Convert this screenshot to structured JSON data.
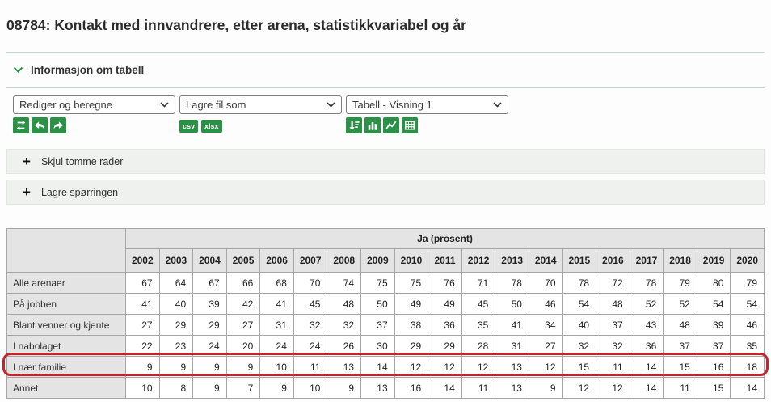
{
  "page": {
    "title": "08784: Kontakt med innvandrere, etter arena, statistikkvariabel og år"
  },
  "info": {
    "label": "Informasjon om tabell",
    "chevron_icon": "chevron-down-icon"
  },
  "toolbar": {
    "selects": [
      {
        "value": "Rediger og beregne"
      },
      {
        "value": "Lagre fil som"
      },
      {
        "value": "Tabell - Visning 1"
      }
    ],
    "edit_icons": [
      "pivot-icon",
      "undo-arrow-icon",
      "redo-arrow-icon"
    ],
    "file_buttons": [
      {
        "label": "csv"
      },
      {
        "label": "xlsx"
      }
    ],
    "view_icons": [
      "sort-icon",
      "bar-chart-icon",
      "line-chart-icon",
      "table-grid-icon"
    ]
  },
  "panels": [
    {
      "icon": "plus-icon",
      "label": "Skjul tomme rader"
    },
    {
      "icon": "plus-icon",
      "label": "Lagre spørringen"
    }
  ],
  "table": {
    "group_header": "Ja (prosent)",
    "years": [
      "2002",
      "2003",
      "2004",
      "2005",
      "2006",
      "2007",
      "2008",
      "2009",
      "2010",
      "2011",
      "2012",
      "2013",
      "2014",
      "2015",
      "2016",
      "2017",
      "2018",
      "2019",
      "2020"
    ],
    "rows": [
      {
        "label": "Alle arenaer",
        "values": [
          67,
          64,
          67,
          66,
          68,
          70,
          74,
          75,
          75,
          76,
          71,
          78,
          70,
          78,
          72,
          78,
          79,
          80,
          79
        ]
      },
      {
        "label": "På jobben",
        "values": [
          41,
          40,
          39,
          42,
          41,
          45,
          48,
          50,
          49,
          49,
          45,
          50,
          46,
          54,
          48,
          52,
          52,
          54,
          54
        ]
      },
      {
        "label": "Blant venner og kjente",
        "values": [
          27,
          29,
          29,
          27,
          31,
          32,
          32,
          37,
          38,
          36,
          35,
          41,
          34,
          40,
          37,
          43,
          48,
          39,
          46
        ]
      },
      {
        "label": "I nabolaget",
        "values": [
          22,
          23,
          24,
          20,
          24,
          24,
          26,
          30,
          29,
          29,
          28,
          31,
          27,
          32,
          32,
          36,
          37,
          37,
          35
        ]
      },
      {
        "label": "I nær familie",
        "values": [
          9,
          9,
          9,
          9,
          10,
          11,
          13,
          14,
          12,
          12,
          12,
          13,
          12,
          15,
          11,
          14,
          15,
          16,
          18
        ],
        "highlighted": true
      },
      {
        "label": "Annet",
        "values": [
          10,
          8,
          9,
          7,
          9,
          10,
          9,
          13,
          16,
          14,
          11,
          13,
          9,
          12,
          12,
          14,
          11,
          15,
          14
        ]
      }
    ]
  },
  "colors": {
    "accent_green": "#2a9147",
    "highlight_red": "#c2252b",
    "header_gray": "#e4e4e4",
    "border_gray": "#a6a6a6",
    "separator_teal": "#c5d9d1"
  }
}
